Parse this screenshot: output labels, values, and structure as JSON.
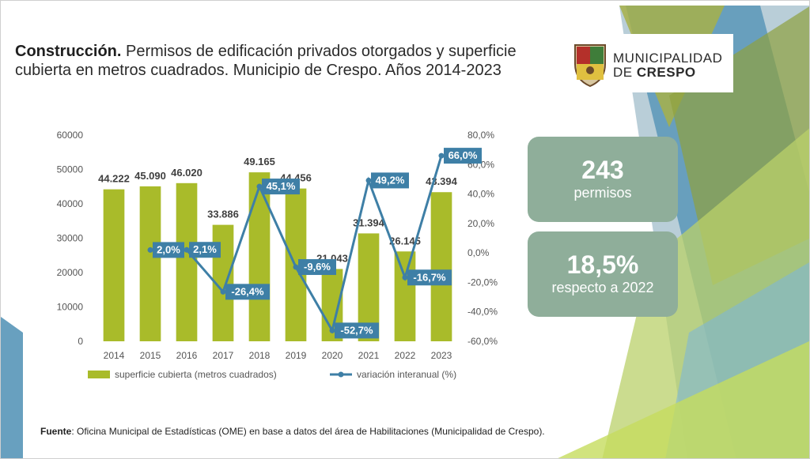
{
  "title": {
    "bold": "Construcción.",
    "rest": " Permisos de edificación privados otorgados y superficie cubierta en metros cuadrados. Municipio de Crespo. Años 2014-2023"
  },
  "logo": {
    "line1": "MUNICIPALIDAD",
    "line2_prefix": "DE ",
    "line2_bold": "CRESPO"
  },
  "cards": [
    {
      "big": "243",
      "small": "permisos"
    },
    {
      "big": "18,5%",
      "small": "respecto a 2022"
    }
  ],
  "source": {
    "label": "Fuente",
    "text": ": Oficina Municipal de Estadísticas (OME) en base a datos del área de Habilitaciones (Municipalidad de Crespo)."
  },
  "colors": {
    "bar": "#a9bb2a",
    "line": "#3e7fa6",
    "card": "#8fae9a"
  },
  "chart_data": {
    "type": "bar",
    "categories": [
      "2014",
      "2015",
      "2016",
      "2017",
      "2018",
      "2019",
      "2020",
      "2021",
      "2022",
      "2023"
    ],
    "series": [
      {
        "name": "superficie cubierta (metros cuadrados)",
        "type": "bar",
        "axis": "left",
        "values": [
          44222,
          45090,
          46020,
          33886,
          49165,
          44456,
          21043,
          31394,
          26145,
          43394
        ],
        "labels": [
          "44.222",
          "45.090",
          "46.020",
          "33.886",
          "49.165",
          "44.456",
          "21.043",
          "31.394",
          "26.145",
          "43.394"
        ]
      },
      {
        "name": "variación interanual (%)",
        "type": "line",
        "axis": "right",
        "values": [
          null,
          2.0,
          2.1,
          -26.4,
          45.1,
          -9.6,
          -52.7,
          49.2,
          -16.7,
          66.0
        ],
        "labels": [
          "",
          "2,0%",
          "2,1%",
          "-26,4%",
          "45,1%",
          "-9,6%",
          "-52,7%",
          "49,2%",
          "-16,7%",
          "66,0%"
        ]
      }
    ],
    "ylim": [
      0,
      60000
    ],
    "yticks": [
      "0",
      "10000",
      "20000",
      "30000",
      "40000",
      "50000",
      "60000"
    ],
    "y2lim": [
      -60,
      80
    ],
    "y2ticks": [
      "-60,0%",
      "-40,0%",
      "-20,0%",
      "0,0%",
      "20,0%",
      "40,0%",
      "60,0%",
      "80,0%"
    ],
    "legend_position": "bottom",
    "grid": false
  }
}
